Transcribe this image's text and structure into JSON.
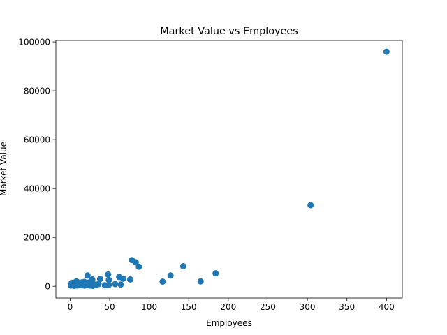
{
  "chart_data": {
    "type": "scatter",
    "title": "Market Value vs Employees",
    "xlabel": "Employees",
    "ylabel": "Market Value",
    "xlim": [
      -18,
      420
    ],
    "ylim": [
      -4800,
      100600
    ],
    "xticks": [
      0,
      50,
      100,
      150,
      200,
      250,
      300,
      350,
      400
    ],
    "yticks": [
      0,
      20000,
      40000,
      60000,
      80000,
      100000
    ],
    "grid": false,
    "legend": "none",
    "marker_color": "#1f77b4",
    "series": [
      {
        "points": [
          [
            400,
            96000
          ],
          [
            304,
            33200
          ],
          [
            78,
            10700
          ],
          [
            83,
            9800
          ],
          [
            87,
            8000
          ],
          [
            143,
            8200
          ],
          [
            184,
            5300
          ],
          [
            127,
            4400
          ],
          [
            48,
            4800
          ],
          [
            22,
            4400
          ],
          [
            62,
            3800
          ],
          [
            67,
            3100
          ],
          [
            76,
            2800
          ],
          [
            49,
            2600
          ],
          [
            38,
            3000
          ],
          [
            28,
            2800
          ],
          [
            117,
            1900
          ],
          [
            165,
            2000
          ],
          [
            64,
            700
          ],
          [
            57,
            900
          ],
          [
            49,
            600
          ],
          [
            44,
            400
          ],
          [
            1,
            300
          ],
          [
            2,
            700
          ],
          [
            3,
            1200
          ],
          [
            4,
            400
          ],
          [
            5,
            900
          ],
          [
            6,
            1500
          ],
          [
            7,
            600
          ],
          [
            8,
            2000
          ],
          [
            9,
            300
          ],
          [
            10,
            1100
          ],
          [
            11,
            800
          ],
          [
            12,
            500
          ],
          [
            13,
            1300
          ],
          [
            14,
            900
          ],
          [
            15,
            400
          ],
          [
            16,
            1000
          ],
          [
            17,
            600
          ],
          [
            18,
            1800
          ],
          [
            19,
            800
          ],
          [
            20,
            500
          ],
          [
            21,
            1200
          ],
          [
            22,
            700
          ],
          [
            23,
            1500
          ],
          [
            24,
            400
          ],
          [
            25,
            900
          ],
          [
            26,
            300
          ],
          [
            27,
            1700
          ],
          [
            28,
            600
          ],
          [
            29,
            1000
          ],
          [
            30,
            800
          ],
          [
            2,
            1400
          ],
          [
            5,
            200
          ],
          [
            9,
            1800
          ],
          [
            12,
            1100
          ],
          [
            15,
            1600
          ],
          [
            18,
            300
          ],
          [
            24,
            1300
          ],
          [
            29,
            200
          ],
          [
            33,
            600
          ],
          [
            36,
            900
          ]
        ]
      }
    ]
  }
}
